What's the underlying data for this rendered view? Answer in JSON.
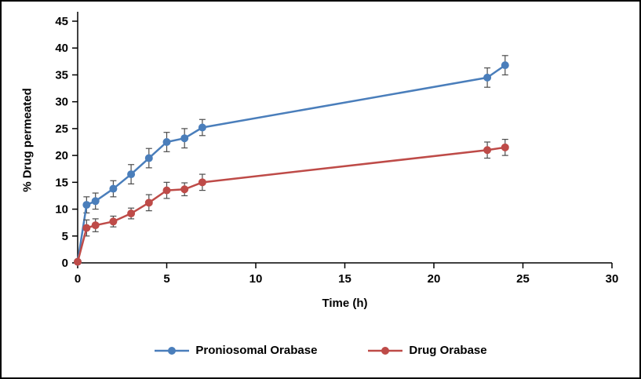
{
  "chart_data": {
    "type": "line",
    "title": "",
    "xlabel": "Time (h)",
    "ylabel": "% Drug permeated",
    "xlim": [
      0,
      30
    ],
    "ylim": [
      0,
      45
    ],
    "xticks": [
      0,
      5,
      10,
      15,
      20,
      25,
      30
    ],
    "yticks": [
      0,
      5,
      10,
      15,
      20,
      25,
      30,
      35,
      40,
      45
    ],
    "grid": false,
    "legend_position": "bottom",
    "error_bar_color": "#4d4d4d",
    "x": [
      0,
      0.5,
      1,
      2,
      3,
      4,
      5,
      6,
      7,
      23,
      24
    ],
    "series": [
      {
        "name": "Proniosomal Orabase",
        "color": "#4a7ebb",
        "values": [
          0.2,
          10.8,
          11.5,
          13.8,
          16.5,
          19.5,
          22.5,
          23.2,
          25.2,
          34.5,
          36.8
        ],
        "errors": [
          0.3,
          1.5,
          1.5,
          1.5,
          1.8,
          1.8,
          1.8,
          1.8,
          1.5,
          1.8,
          1.8
        ]
      },
      {
        "name": "Drug Orabase",
        "color": "#be4b48",
        "values": [
          0.2,
          6.5,
          7.0,
          7.7,
          9.2,
          11.2,
          13.5,
          13.7,
          15.0,
          21.0,
          21.5
        ],
        "errors": [
          0.2,
          1.5,
          1.2,
          1.0,
          1.0,
          1.5,
          1.5,
          1.2,
          1.5,
          1.5,
          1.5
        ]
      }
    ]
  }
}
